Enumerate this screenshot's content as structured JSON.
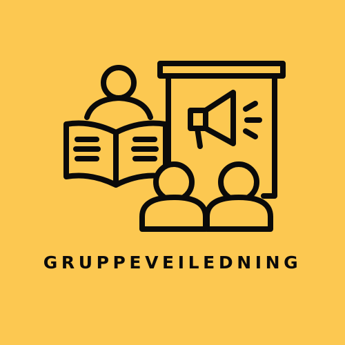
{
  "caption": "GRUPPEVEILEDNING",
  "colors": {
    "background": "#fcc851",
    "line": "#0a0a0a"
  },
  "icons": [
    "reader-person-icon",
    "open-book-icon",
    "presentation-board-icon",
    "megaphone-icon",
    "audience-person-icon"
  ]
}
